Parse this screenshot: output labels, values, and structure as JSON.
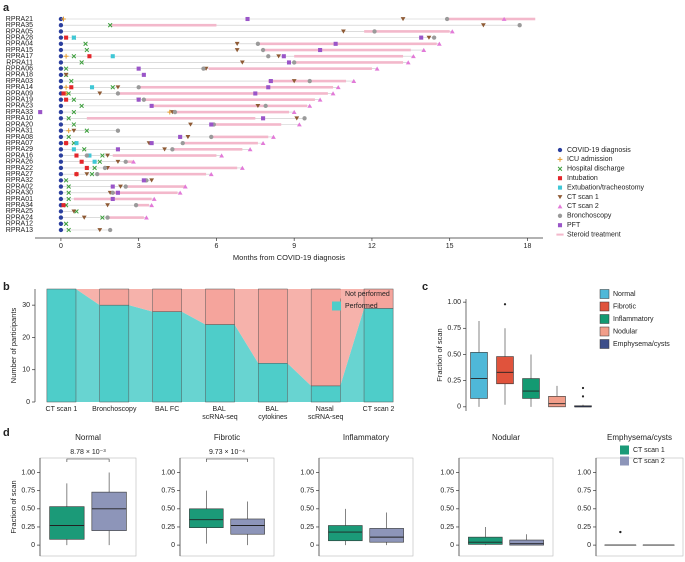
{
  "chart_data": [
    {
      "type": "timeline",
      "panel": "a",
      "categories": [
        "RPRA21",
        "RPRA35",
        "RPRA05",
        "RPRA28",
        "RPRA04",
        "RPRA15",
        "RPRA17",
        "RPRA11",
        "RPRA06",
        "RPRA18",
        "RPRA03",
        "RPRA14",
        "RPRA09",
        "RPRA19",
        "RPRA23",
        "RPRA33",
        "RPRA10",
        "RPRA20",
        "RPRA31",
        "RPRA08",
        "RPRA07",
        "RPRA29",
        "RPRA16",
        "RPRA26",
        "RPRA22",
        "RPRA27",
        "RPRA32",
        "RPRA02",
        "RPRA30",
        "RPRA01",
        "RPRA34",
        "RPRA25",
        "RPRA24",
        "RPRA12",
        "RPRA13"
      ],
      "xlabel": "Months from COVID-19 diagnosis",
      "xlim": [
        -1,
        18.6
      ],
      "xticks": [
        0,
        3,
        6,
        9,
        12,
        15,
        18
      ],
      "legend": "lower right",
      "series": [
        {
          "name": "COVID-19 diagnosis",
          "color": "#2b3f9e",
          "marker": "circle",
          "values": [
            0,
            0,
            0,
            0,
            0,
            0,
            0,
            0,
            0,
            0,
            0,
            0,
            0,
            0,
            0,
            0,
            0,
            0,
            0,
            0,
            0,
            0,
            0,
            0,
            0,
            0,
            0,
            0,
            0,
            0,
            0,
            0,
            0,
            0,
            0
          ]
        },
        {
          "name": "ICU admission",
          "color": "#e39b2f",
          "marker": "plus",
          "values": [
            0.1,
            null,
            null,
            null,
            null,
            null,
            0.2,
            null,
            null,
            null,
            null,
            0.2,
            0.2,
            null,
            null,
            4.2,
            null,
            null,
            0.3,
            null,
            0.2,
            null,
            null,
            null,
            null,
            0.6,
            null,
            null,
            null,
            null,
            null,
            null,
            null,
            null,
            null
          ]
        },
        {
          "name": "Hospital discharge",
          "color": "#3a9e3a",
          "marker": "cross",
          "values": [
            null,
            1.9,
            null,
            0.5,
            0.95,
            1.0,
            0.5,
            0.8,
            0.2,
            0.2,
            0.4,
            2.0,
            0.3,
            0.5,
            0.8,
            0.5,
            0.3,
            0.5,
            1.0,
            0.3,
            0.5,
            0.9,
            1.6,
            1.5,
            1.3,
            1.2,
            0.2,
            0.3,
            0.3,
            0.3,
            0.2,
            0.6,
            1.6,
            0.2,
            0.3
          ]
        },
        {
          "name": "Intubation",
          "color": "#e3262b",
          "marker": "square",
          "values": [
            null,
            null,
            null,
            0.2,
            null,
            null,
            1.1,
            null,
            null,
            null,
            null,
            0.4,
            0.1,
            0.2,
            null,
            null,
            null,
            null,
            null,
            null,
            0.2,
            null,
            0.6,
            0.8,
            1.0,
            0.6,
            null,
            null,
            null,
            null,
            0.1,
            null,
            null,
            null,
            null
          ]
        },
        {
          "name": "Extubation/tracheostomy",
          "color": "#3fc7d6",
          "marker": "square",
          "values": [
            null,
            null,
            null,
            0.5,
            null,
            null,
            2.0,
            null,
            null,
            null,
            null,
            1.2,
            null,
            null,
            null,
            null,
            null,
            null,
            null,
            null,
            0.6,
            0.5,
            1.1,
            1.3,
            null,
            null,
            null,
            null,
            null,
            null,
            null,
            null,
            null,
            null,
            null
          ]
        },
        {
          "name": "CT scan 1",
          "color": "#8e5a34",
          "marker": "triangle-down",
          "values": [
            13.2,
            16.3,
            10.9,
            14.2,
            6.8,
            6.8,
            8.4,
            7.0,
            5.6,
            0.2,
            9.0,
            2.2,
            1.5,
            3.0,
            7.6,
            4.3,
            9.1,
            5.0,
            0.5,
            4.9,
            3.4,
            4.0,
            1.8,
            2.2,
            1.8,
            1.0,
            3.5,
            2.3,
            1.9,
            null,
            1.8,
            0.5,
            0.9,
            null,
            1.5
          ]
        },
        {
          "name": "CT scan 2",
          "color": "#e27ad8",
          "marker": "triangle-up",
          "values": [
            17.1,
            null,
            15.1,
            null,
            14.6,
            14.0,
            13.6,
            13.4,
            12.2,
            null,
            11.3,
            10.7,
            10.5,
            10.0,
            9.6,
            9.0,
            null,
            9.2,
            null,
            8.2,
            7.8,
            7.3,
            6.2,
            2.8,
            7.0,
            5.8,
            null,
            4.8,
            4.6,
            3.6,
            3.5,
            null,
            3.3,
            null,
            null
          ]
        },
        {
          "name": "Bronchoscopy",
          "color": "#9a9a9a",
          "marker": "circle",
          "values": [
            14.9,
            17.7,
            12.1,
            14.4,
            7.6,
            7.8,
            8.0,
            9.0,
            5.5,
            null,
            9.6,
            3.0,
            2.2,
            3.2,
            7.9,
            4.4,
            9.4,
            5.9,
            2.2,
            5.8,
            4.7,
            4.3,
            1.0,
            2.5,
            1.7,
            1.4,
            3.3,
            2.5,
            2.0,
            null,
            2.9,
            null,
            1.8,
            null,
            1.9
          ]
        },
        {
          "name": "PFT",
          "color": "#9a55c8",
          "marker": "square",
          "values": [
            7.2,
            null,
            null,
            13.9,
            10.6,
            10.0,
            8.6,
            8.8,
            3.0,
            3.2,
            8.1,
            8.0,
            7.5,
            3.0,
            3.5,
            -0.8,
            7.8,
            5.8,
            null,
            4.6,
            3.5,
            2.2,
            null,
            null,
            null,
            null,
            3.2,
            2.0,
            2.2,
            2.0,
            null,
            null,
            null,
            null,
            null
          ]
        },
        {
          "name": "Steroid treatment",
          "color": "#f3b8cb",
          "marker": "range",
          "ranges": [
            [
              14.9,
              18.3
            ],
            [
              1.9,
              6.0
            ],
            [
              11.7,
              15.0
            ],
            null,
            [
              7.6,
              14.5
            ],
            [
              7.8,
              13.5
            ],
            [
              9.0,
              13.2
            ],
            [
              9.0,
              13.2
            ],
            [
              5.7,
              12.0
            ],
            null,
            [
              8.0,
              11.0
            ],
            [
              3.0,
              10.5
            ],
            [
              2.2,
              10.3
            ],
            [
              3.2,
              9.8
            ],
            [
              3.5,
              9.5
            ],
            [
              4.4,
              8.8
            ],
            [
              1.0,
              7.5
            ],
            [
              5.9,
              8.5
            ],
            null,
            [
              5.8,
              8.0
            ],
            [
              4.7,
              7.6
            ],
            [
              4.3,
              7.0
            ],
            [
              2.0,
              6.0
            ],
            [
              2.5,
              2.8
            ],
            [
              1.8,
              6.8
            ],
            [
              1.4,
              5.6
            ],
            null,
            [
              2.5,
              4.8
            ],
            [
              2.0,
              4.5
            ],
            [
              0.5,
              3.5
            ],
            [
              2.9,
              3.4
            ],
            null,
            [
              1.8,
              3.2
            ],
            null,
            null
          ]
        }
      ]
    },
    {
      "type": "bar",
      "panel": "b",
      "stacked": true,
      "categories": [
        "CT scan 1",
        "Bronchoscopy",
        "BAL FC",
        "BAL scRNA-seq",
        "BAL cytokines",
        "Nasal scRNA-seq",
        "CT scan 2"
      ],
      "ylabel": "Number of participants",
      "ylim": [
        0,
        35
      ],
      "yticks": [
        0,
        10,
        20,
        30
      ],
      "legend": "upper right",
      "series": [
        {
          "name": "Performed",
          "color": "#4ecdc9",
          "values": [
            35,
            30,
            28,
            24,
            12,
            5,
            29
          ]
        },
        {
          "name": "Not performed",
          "color": "#f5a49c",
          "values": [
            0,
            5,
            7,
            11,
            23,
            30,
            6
          ]
        }
      ]
    },
    {
      "type": "box",
      "panel": "c",
      "ylabel": "Fraction of scan",
      "ylim": [
        -0.04,
        1.03
      ],
      "yticks": [
        0,
        0.25,
        {
          "value": 0.5,
          "label": "0.50"
        },
        0.75,
        {
          "value": 1,
          "label": "1.00"
        }
      ],
      "legend": "right",
      "series": [
        {
          "name": "Normal",
          "color": "#4fb8d8",
          "box": [
            0,
            0.08,
            0.27,
            0.52,
            0.82
          ]
        },
        {
          "name": "Fibrotic",
          "color": "#e0533c",
          "box": [
            0.02,
            0.22,
            0.33,
            0.48,
            0.75
          ],
          "outliers": [
            0.98
          ]
        },
        {
          "name": "Inflammatory",
          "color": "#139a72",
          "box": [
            0,
            0.08,
            0.15,
            0.27,
            0.5
          ]
        },
        {
          "name": "Nodular",
          "color": "#f29e8a",
          "box": [
            0,
            0,
            0.03,
            0.1,
            0.2
          ]
        },
        {
          "name": "Emphysema/cysts",
          "color": "#3c4e8a",
          "box": [
            0,
            0,
            0,
            0.01,
            0.02
          ],
          "outliers": [
            0.18,
            0.1
          ]
        }
      ]
    },
    {
      "type": "box",
      "panel": "d",
      "ylabel": "Fraction of scan",
      "ylim": [
        -0.15,
        1.2
      ],
      "yticks": [
        0,
        0.25,
        {
          "value": 0.5,
          "label": "0.50"
        },
        0.75,
        {
          "value": 1,
          "label": "1.00"
        }
      ],
      "legend": "upper right",
      "series": [
        {
          "name": "CT scan 1",
          "color": "#1b9a78"
        },
        {
          "name": "CT scan 2",
          "color": "#8d95b9"
        }
      ],
      "panels": [
        {
          "title": "Normal",
          "annotation": "8.78 × 10⁻³",
          "boxes": [
            [
              0,
              0.08,
              0.27,
              0.53,
              0.85
            ],
            [
              0,
              0.2,
              0.5,
              0.73,
              1.0
            ]
          ]
        },
        {
          "title": "Fibrotic",
          "annotation": "9.73 × 10⁻⁴",
          "boxes": [
            [
              0.02,
              0.24,
              0.35,
              0.5,
              0.75
            ],
            [
              0,
              0.15,
              0.27,
              0.36,
              0.6
            ]
          ]
        },
        {
          "title": "Inflammatory",
          "boxes": [
            [
              0,
              0.06,
              0.18,
              0.27,
              0.5
            ],
            [
              0,
              0.04,
              0.11,
              0.23,
              0.45
            ]
          ]
        },
        {
          "title": "Nodular",
          "boxes": [
            [
              0,
              0.01,
              0.04,
              0.11,
              0.25
            ],
            [
              0,
              0,
              0.02,
              0.07,
              0.15
            ]
          ]
        },
        {
          "title": "Emphysema/cysts",
          "boxes": [
            [
              0,
              0,
              0,
              0,
              0
            ],
            [
              0,
              0,
              0,
              0,
              0
            ]
          ],
          "outliers": [
            [
              0.18
            ],
            []
          ]
        }
      ]
    }
  ]
}
